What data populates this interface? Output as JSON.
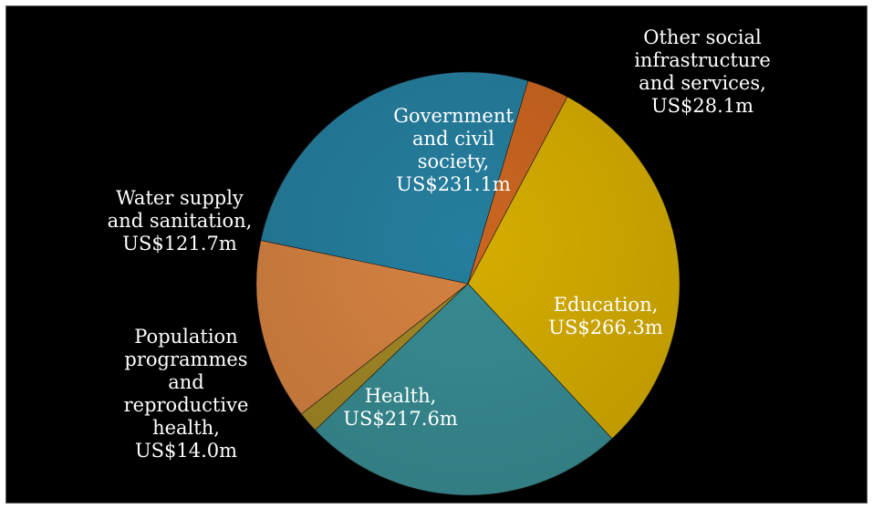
{
  "chart_data": {
    "type": "pie",
    "title": "",
    "start_angle_deg": 28,
    "direction": "clockwise",
    "slices": [
      {
        "label": "Education,\nUS$266.3m",
        "value": 266.3,
        "color": "#f2c400",
        "label_position": "inside"
      },
      {
        "label": "Health,\nUS$217.6m",
        "value": 217.6,
        "color": "#3f9fa6",
        "label_position": "inside"
      },
      {
        "label": "Population\nprogrammes\nand\nreproductive\nhealth,\nUS$14.0m",
        "value": 14.0,
        "color": "#b89a2a",
        "label_position": "outside"
      },
      {
        "label": "Water supply\nand sanitation,\nUS$121.7m",
        "value": 121.7,
        "color": "#f3944a",
        "label_position": "outside"
      },
      {
        "label": "Government\nand civil\nsociety,\nUS$231.1m",
        "value": 231.1,
        "color": "#2a8fb3",
        "label_position": "inside"
      },
      {
        "label": "Other social\ninfrastructure\nand services,\nUS$28.1m",
        "value": 28.1,
        "color": "#e67325",
        "label_position": "outside"
      }
    ]
  }
}
